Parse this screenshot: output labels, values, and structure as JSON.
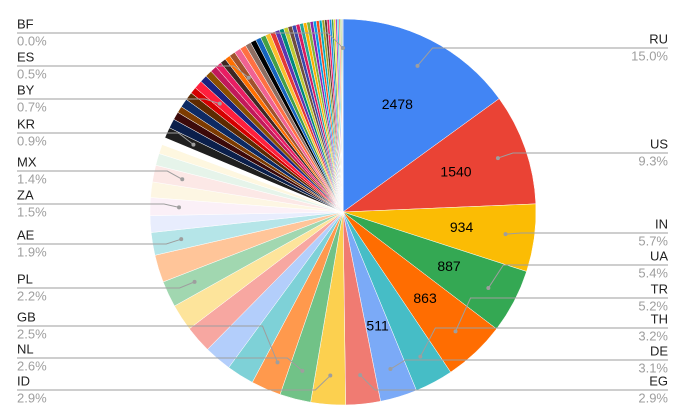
{
  "chart_data": {
    "type": "pie",
    "categories": [
      "RU",
      "US",
      "IN",
      "UA",
      "TR",
      "TH",
      "DE",
      "EG",
      "ID",
      "NL",
      "GB",
      null,
      null,
      null,
      null,
      "PL",
      null,
      "AE",
      null,
      "ZA",
      null,
      "MX",
      null,
      null,
      null,
      "KR",
      null,
      null,
      null,
      null,
      null,
      null,
      "BY",
      null,
      null,
      null,
      null,
      null,
      null,
      "ES",
      null,
      null,
      null,
      null,
      null,
      null,
      null,
      null,
      null,
      null,
      null,
      null,
      null,
      null,
      null,
      null,
      null,
      null,
      null,
      null,
      null,
      null,
      null,
      null,
      null,
      null,
      null,
      null,
      null,
      null,
      null,
      null,
      "BF"
    ],
    "values": [
      2478,
      1540,
      934,
      887,
      863,
      529,
      511,
      479,
      479,
      430,
      413,
      380,
      380,
      375,
      370,
      363,
      380,
      314,
      230,
      248,
      215,
      231,
      165,
      130,
      100,
      149,
      130,
      110,
      90,
      120,
      110,
      90,
      116,
      100,
      95,
      90,
      85,
      80,
      75,
      83,
      90,
      85,
      80,
      78,
      75,
      72,
      70,
      68,
      65,
      62,
      60,
      58,
      55,
      52,
      50,
      48,
      46,
      44,
      42,
      40,
      38,
      36,
      34,
      32,
      30,
      28,
      26,
      24,
      22,
      20,
      18,
      16,
      3
    ],
    "percent_labels": [
      "15.0%",
      "9.3%",
      "5.7%",
      "5.4%",
      "5.2%",
      "3.2%",
      "3.1%",
      "2.9%",
      "2.9%",
      "2.6%",
      "2.5%",
      null,
      null,
      null,
      null,
      "2.2%",
      null,
      "1.9%",
      null,
      "1.5%",
      null,
      "1.4%",
      null,
      null,
      null,
      "0.9%",
      null,
      null,
      null,
      null,
      null,
      null,
      "0.7%",
      null,
      null,
      null,
      null,
      null,
      null,
      "0.5%",
      null,
      null,
      null,
      null,
      null,
      null,
      null,
      null,
      null,
      null,
      null,
      null,
      null,
      null,
      null,
      null,
      null,
      null,
      null,
      null,
      null,
      null,
      null,
      null,
      null,
      null,
      null,
      null,
      null,
      null,
      null,
      null,
      "0.0%"
    ],
    "value_labels": [
      "2478",
      "1540",
      "934",
      "887",
      "863",
      null,
      "511",
      null,
      null,
      null,
      null,
      null,
      null,
      null,
      null,
      null,
      null,
      null,
      null,
      null,
      null,
      null,
      null,
      null,
      null,
      null,
      null,
      null,
      null,
      null,
      null,
      null,
      null,
      null,
      null,
      null,
      null,
      null,
      null,
      null,
      null,
      null,
      null,
      null,
      null,
      null,
      null,
      null,
      null,
      null,
      null,
      null,
      null,
      null,
      null,
      null,
      null,
      null,
      null,
      null,
      null,
      null,
      null,
      null,
      null,
      null,
      null,
      null,
      null,
      null,
      null,
      null,
      null
    ],
    "colors": [
      "#4285f4",
      "#ea4335",
      "#fbbc04",
      "#34a853",
      "#ff6d01",
      "#46bdc6",
      "#7baaf7",
      "#f07b72",
      "#fcd04f",
      "#71c287",
      "#ff994d",
      "#7ed1d7",
      "#b3cefb",
      "#f7a7a1",
      "#fde49b",
      "#a1d7b0",
      "#ffc599",
      "#b5e5e8",
      "#e8edfd",
      "#fbf0f7",
      "#fdf6e3",
      "#fce8e6",
      "#e6f4ea",
      "#fef7e0",
      "#ffffff",
      "#1f1f1f",
      "#0b1f4b",
      "#3c0a0a",
      "#7d3b00",
      "#0d2a63",
      "#5e2a00",
      "#d50000",
      "#ff1f3d",
      "#1a237e",
      "#8d4f00",
      "#c2185b",
      "#e91e63",
      "#3e2723",
      "#ff6f00",
      "#a0522d",
      "#f06292",
      "#ff7043",
      "#8d6e63",
      "#000000",
      "#1565c0",
      "#43a047",
      "#fbc02d",
      "#e53935",
      "#5e35b1",
      "#00897b",
      "#c0ca33",
      "#6d4c41",
      "#3949ab",
      "#d81b60",
      "#26a69a",
      "#ffb300",
      "#7cb342",
      "#8e24aa",
      "#039be5",
      "#f4511e",
      "#00acc1",
      "#9e9d24",
      "#5d4037",
      "#e91e63",
      "#1e88e5",
      "#43a047",
      "#fdd835",
      "#ab47bc",
      "#26c6da",
      "#ff8a65",
      "#9ccc65",
      "#b0bec5",
      "#9fa8da"
    ]
  }
}
